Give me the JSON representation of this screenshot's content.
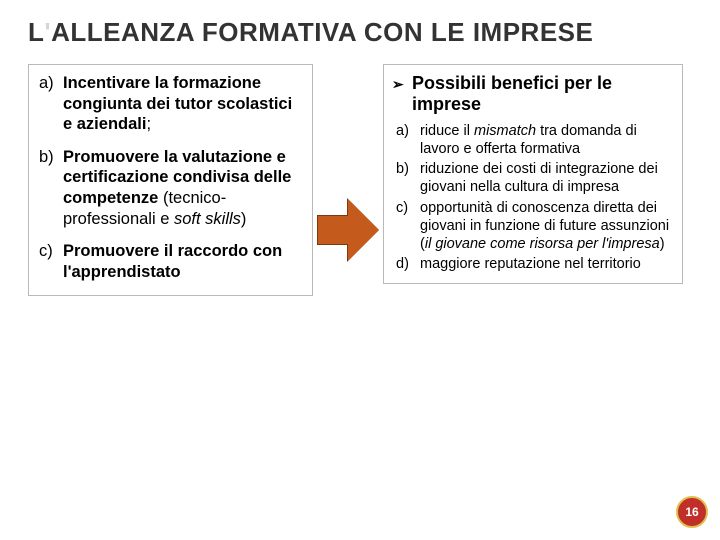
{
  "title": {
    "prefix_dark": "L",
    "prefix_faded": "'",
    "rest": "ALLEANZA FORMATIVA CON LE IMPRESE"
  },
  "left": {
    "items": [
      {
        "marker": "a)",
        "html": "<b>Incentivare la formazione congiunta dei tutor scolastici e aziendali</b>;"
      },
      {
        "marker": "b)",
        "html": "<b>Promuovere la valutazione e certificazione condivisa delle competenze</b> (tecnico-professionali e <i>soft skills</i>)"
      },
      {
        "marker": "c)",
        "html": "<b>Promuovere il raccordo con l'apprendistato</b>"
      }
    ]
  },
  "right": {
    "header": "Possibili benefici per le imprese",
    "items": [
      {
        "marker": "a)",
        "html": "riduce il <i>mismatch</i> tra domanda di lavoro e offerta formativa"
      },
      {
        "marker": "b)",
        "html": "riduzione dei costi di integrazione dei giovani nella cultura di impresa"
      },
      {
        "marker": "c)",
        "html": "opportunità di conoscenza diretta dei giovani in funzione di future assunzioni  (<i>il giovane come risorsa per l'impresa</i>)"
      },
      {
        "marker": "d)",
        "html": "maggiore reputazione nel territorio"
      }
    ]
  },
  "badge": "16",
  "colors": {
    "arrow_fill": "#c45a1c",
    "arrow_border": "#7a3a10",
    "box_border": "#b9b9b9",
    "title_dark": "#333333",
    "title_faded": "#d6d6d6",
    "badge_bg": "#c03028",
    "badge_border": "#e0c050"
  }
}
